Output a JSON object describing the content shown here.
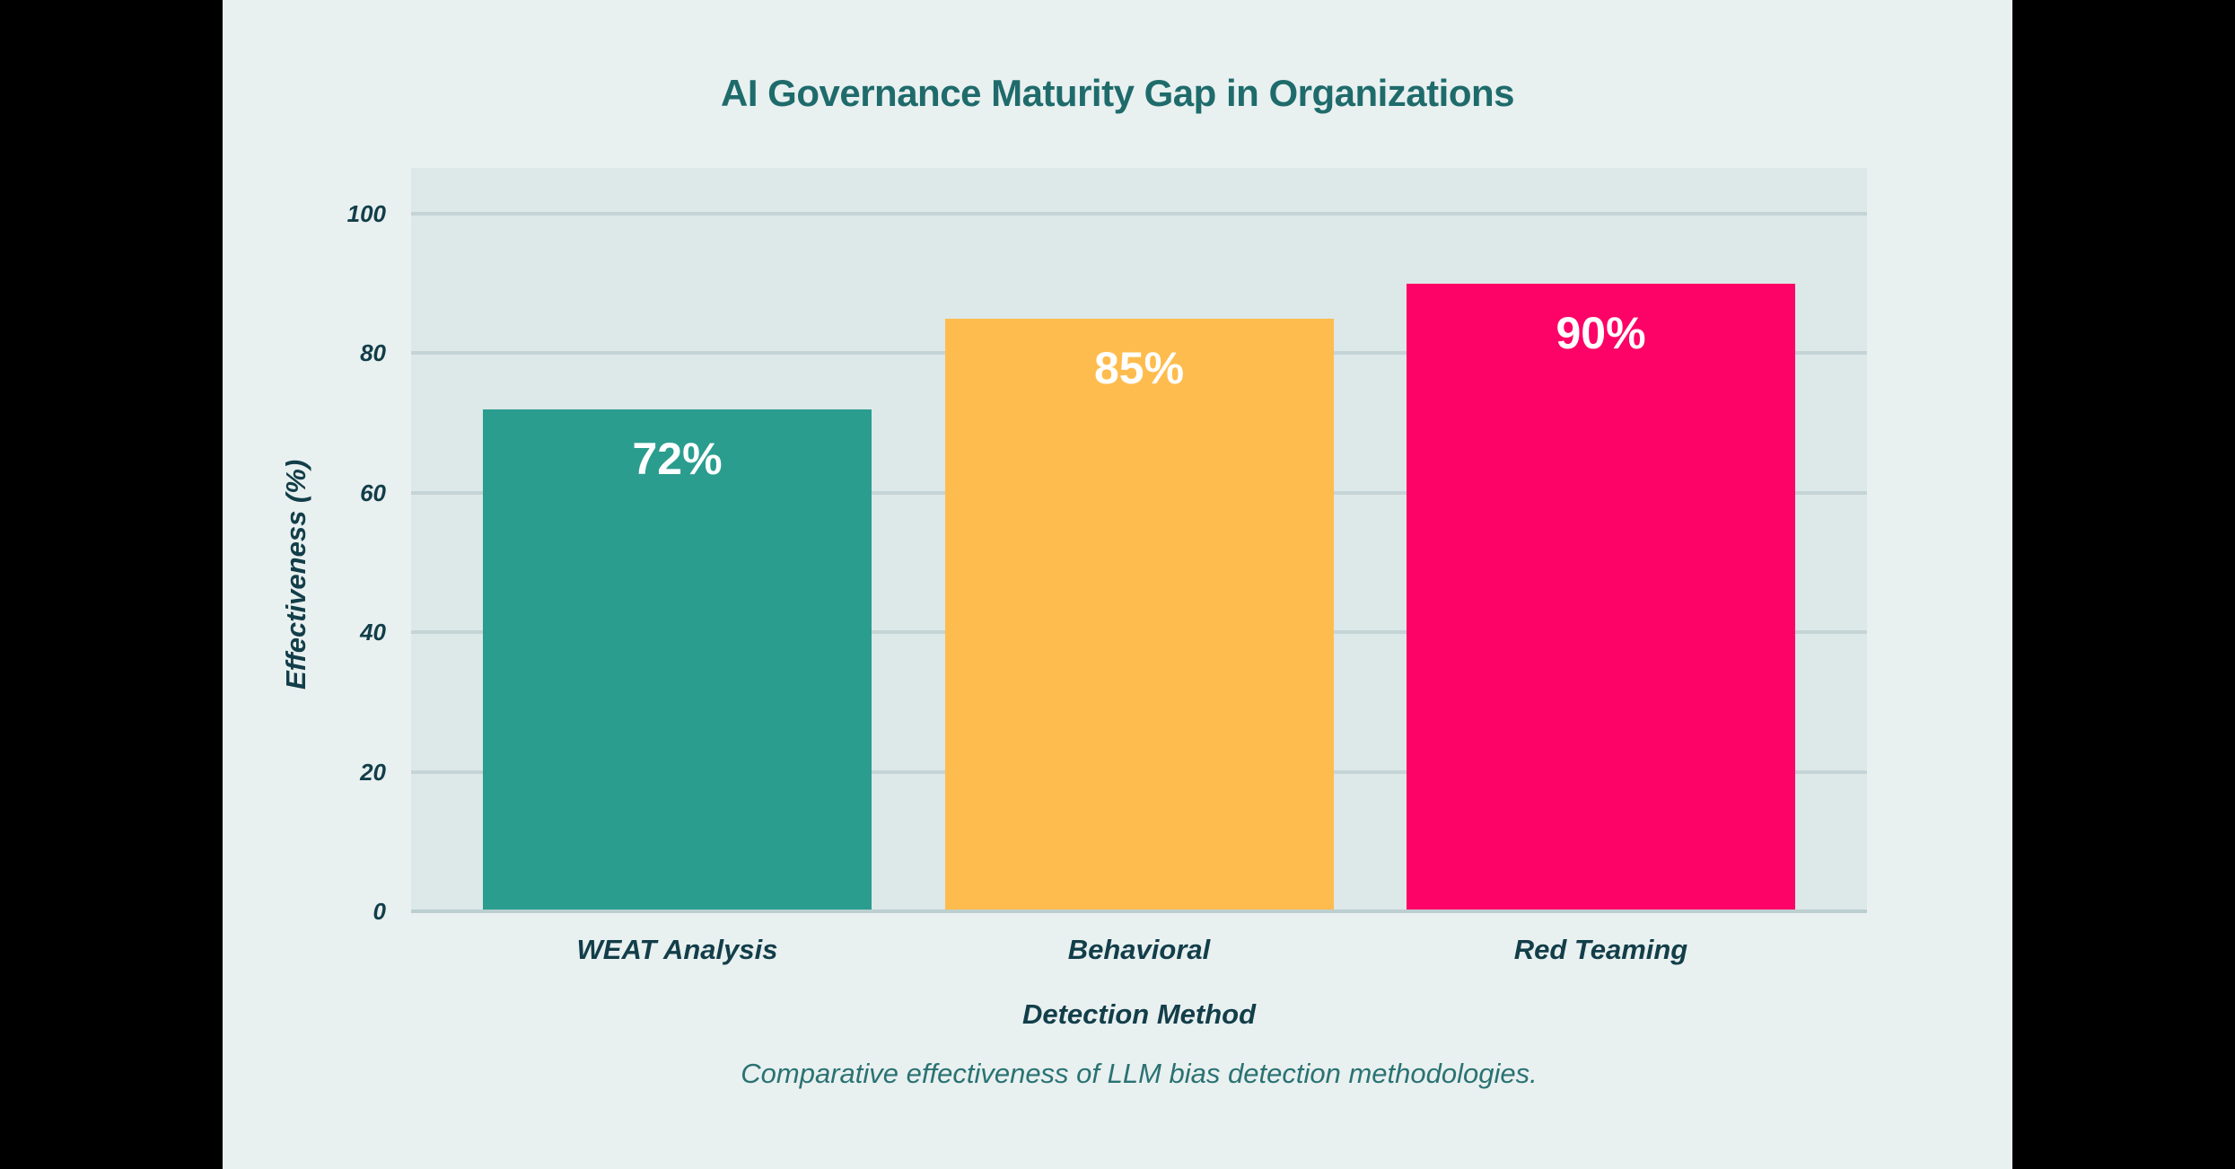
{
  "chart_data": {
    "type": "bar",
    "title": "AI Governance Maturity Gap in Organizations",
    "categories": [
      "WEAT Analysis",
      "Behavioral",
      "Red Teaming"
    ],
    "values": [
      72,
      85,
      90
    ],
    "bar_labels": [
      "72%",
      "85%",
      "90%"
    ],
    "bar_colors": [
      "#2A9D8F",
      "#FEBC4E",
      "#FD0267"
    ],
    "xlabel": "Detection Method",
    "ylabel": "Effectiveness (%)",
    "ylim": [
      0,
      100
    ],
    "yticks": [
      0,
      20,
      40,
      60,
      80,
      100
    ],
    "grid": true,
    "legend": "none",
    "caption": "Comparative effectiveness of LLM bias detection methodologies."
  },
  "colors": {
    "letterbox": "#000000",
    "page_background": "#E9F0F0",
    "plot_background": "#DDE8E8",
    "gridline": "#C5D4D6",
    "title_text": "#1F6B6B",
    "axis_text": "#123E49",
    "caption_text": "#2A7272",
    "value_label_text": "#FFFFFF"
  }
}
